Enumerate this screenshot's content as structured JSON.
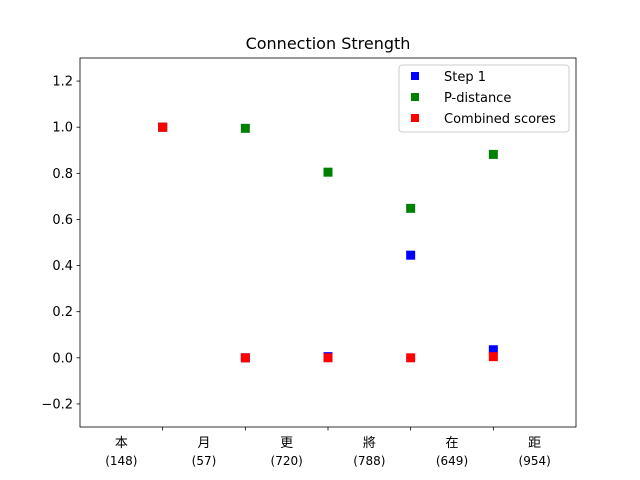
{
  "chart_data": {
    "type": "scatter",
    "title": "Connection Strength",
    "xlabel": "",
    "ylabel": "",
    "categories": [
      {
        "char": "本",
        "count": "(148)"
      },
      {
        "char": "月",
        "count": "(57)"
      },
      {
        "char": "更",
        "count": "(720)"
      },
      {
        "char": "將",
        "count": "(788)"
      },
      {
        "char": "在",
        "count": "(649)"
      },
      {
        "char": "距",
        "count": "(954)"
      }
    ],
    "x_points": [
      0.5,
      1.5,
      2.5,
      3.5,
      4.5
    ],
    "ylim": [
      -0.3,
      1.3
    ],
    "yticks": [
      -0.2,
      0.0,
      0.2,
      0.4,
      0.6,
      0.8,
      1.0,
      1.2
    ],
    "ytick_labels": [
      "−0.2",
      "0.0",
      "0.2",
      "0.4",
      "0.6",
      "0.8",
      "1.0",
      "1.2"
    ],
    "xlim": [
      -0.5,
      5.5
    ],
    "minor_ticks": [
      0.5,
      1.5,
      2.5,
      3.5,
      4.5
    ],
    "grid": false,
    "legend_position": "top-right",
    "series": [
      {
        "name": "Step 1",
        "color": "#0000ff",
        "values": [
          1.0,
          0.0,
          0.005,
          0.445,
          0.035
        ]
      },
      {
        "name": "P-distance",
        "color": "#008000",
        "values": [
          1.0,
          0.995,
          0.805,
          0.648,
          0.882
        ]
      },
      {
        "name": "Combined scores",
        "color": "#ff0000",
        "values": [
          1.0,
          0.0,
          0.0,
          0.0,
          0.005
        ]
      }
    ]
  }
}
